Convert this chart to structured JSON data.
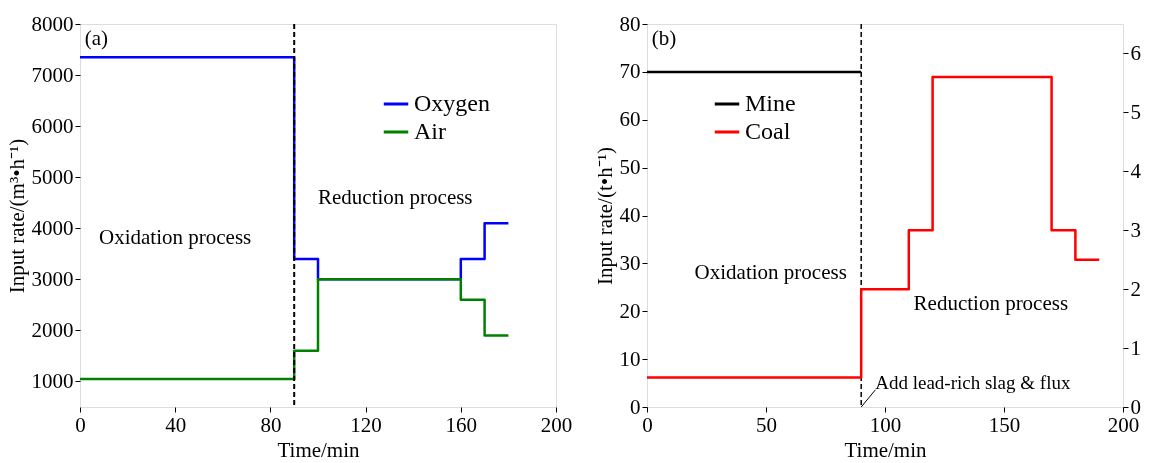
{
  "chart_data": [
    {
      "type": "step",
      "xlabel": "Time/min",
      "ylabel": "Input rate/(m³•h⁻¹)",
      "xlim": [
        0,
        200
      ],
      "xticks": [
        0,
        40,
        80,
        120,
        160,
        200
      ],
      "ylim": [
        500,
        8000
      ],
      "yticks": [
        1000,
        2000,
        3000,
        4000,
        5000,
        6000,
        7000,
        8000
      ],
      "grid": false,
      "legend": "top right",
      "line_style": "solid",
      "series": [
        {
          "name": "Oxygen",
          "color": "#0000ff",
          "x": [
            0,
            90,
            100,
            160,
            170,
            180
          ],
          "values": [
            7350,
            3400,
            3000,
            3400,
            4100,
            4100
          ]
        },
        {
          "name": "Air",
          "color": "#008000",
          "x": [
            0,
            90,
            100,
            160,
            170,
            180
          ],
          "values": [
            1050,
            1600,
            3000,
            2600,
            1900,
            1900
          ]
        }
      ],
      "ref_lines": [
        {
          "axis": "x",
          "value": 90,
          "color": "#000000",
          "line_style": "dashed"
        }
      ],
      "annotations": [
        "(a)",
        "Oxidation process",
        "Reduction process"
      ]
    },
    {
      "type": "step",
      "xlabel": "Time/min",
      "ylabel": "Input rate/(t•h⁻¹)",
      "xlim": [
        0,
        200
      ],
      "xticks": [
        0,
        50,
        100,
        150,
        200
      ],
      "ylim": [
        0,
        80
      ],
      "yticks": [
        0,
        10,
        20,
        30,
        40,
        50,
        60,
        70,
        80
      ],
      "y2lim": [
        0,
        6.5
      ],
      "y2ticks": [
        0,
        1,
        2,
        3,
        4,
        5,
        6
      ],
      "grid": false,
      "legend": "top left",
      "line_style": "solid",
      "series": [
        {
          "name": "Mine",
          "color": "#000000",
          "x": [
            0,
            90
          ],
          "values": [
            70,
            70
          ]
        },
        {
          "name": "Coal",
          "color": "#ff0000",
          "axis": "y2",
          "x": [
            0,
            90,
            110,
            120,
            170,
            180,
            190
          ],
          "values": [
            0.5,
            2,
            3,
            5.6,
            3,
            2.5,
            2.5
          ]
        }
      ],
      "ref_lines": [
        {
          "axis": "x",
          "value": 90,
          "color": "#000000",
          "line_style": "dashed"
        }
      ],
      "annotations": [
        "(b)",
        "Oxidation process",
        "Reduction process",
        {
          "text": "Add lead-rich slag & flux",
          "x": 90,
          "y": 0
        }
      ]
    }
  ]
}
